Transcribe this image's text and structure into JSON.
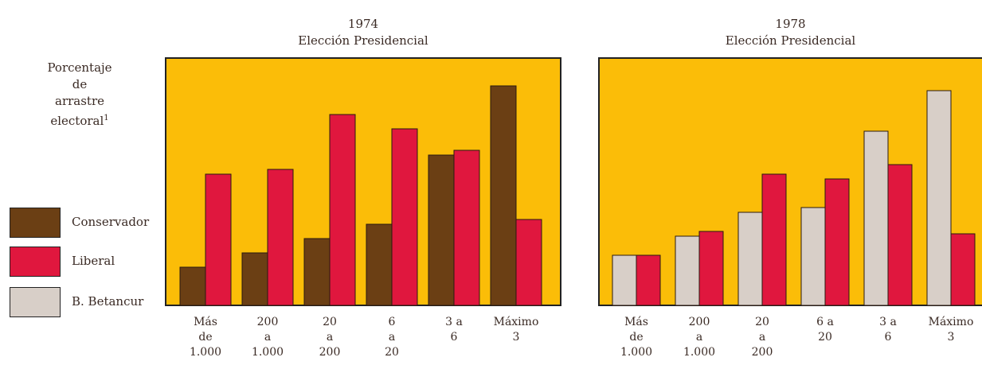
{
  "chart_data": [
    {
      "type": "bar",
      "title": "1974",
      "subtitle": "Elección Presidencial",
      "categories": [
        [
          "Más",
          "de",
          "1.000"
        ],
        [
          "200",
          "a",
          "1.000"
        ],
        [
          "20",
          "a",
          "200"
        ],
        [
          "6",
          "a",
          "20"
        ],
        [
          "3 a",
          "6"
        ],
        [
          "Máximo",
          "3"
        ]
      ],
      "series": [
        {
          "name": "Conservador",
          "values": [
            16,
            22,
            28,
            34,
            63,
            92
          ]
        },
        {
          "name": "Liberal",
          "values": [
            55,
            57,
            80,
            74,
            65,
            36
          ]
        }
      ],
      "ylim": [
        0,
        100
      ]
    },
    {
      "type": "bar",
      "title": "1978",
      "subtitle": "Elección Presidencial",
      "categories": [
        [
          "Más",
          "de",
          "1.000"
        ],
        [
          "200",
          "a",
          "1.000"
        ],
        [
          "20",
          "a",
          "200"
        ],
        [
          "6 a",
          "20"
        ],
        [
          "3 a",
          "6"
        ],
        [
          "Máximo",
          "3"
        ]
      ],
      "series": [
        {
          "name": "B. Betancur",
          "values": [
            21,
            29,
            39,
            41,
            73,
            90
          ]
        },
        {
          "name": "Liberal",
          "values": [
            21,
            31,
            55,
            53,
            59,
            30
          ]
        }
      ],
      "ylim": [
        0,
        100
      ]
    }
  ],
  "ylabel": [
    "Porcentaje",
    "de",
    "arrastre",
    "electoral"
  ],
  "ylabel_sup": "1",
  "legend": [
    {
      "name": "Conservador",
      "color": "#6b3f14"
    },
    {
      "name": "Liberal",
      "color": "#e0173e"
    },
    {
      "name": "B. Betancur",
      "color": "#d8cfc8"
    }
  ],
  "colors": {
    "background": "#fbbd08",
    "conservador": "#6b3f14",
    "liberal": "#e0173e",
    "betancur": "#d8cfc8"
  }
}
